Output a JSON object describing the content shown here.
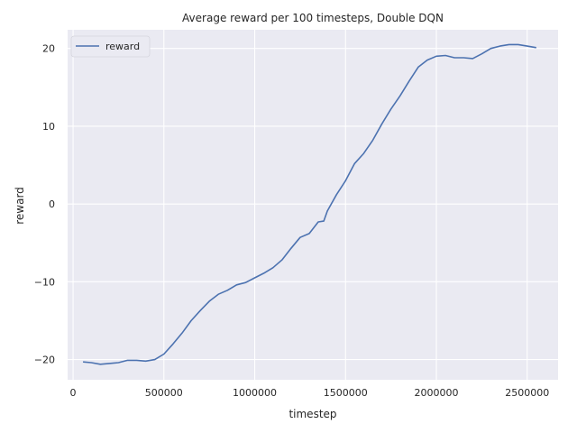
{
  "chart_data": {
    "type": "line",
    "title": "Average reward per 100 timesteps, Double DQN",
    "xlabel": "timestep",
    "ylabel": "reward",
    "xlim": [
      -30000,
      2670000
    ],
    "ylim": [
      -22.6,
      22.4
    ],
    "x_ticks": [
      0,
      500000,
      1000000,
      1500000,
      2000000,
      2500000
    ],
    "x_tick_labels": [
      "0",
      "500000",
      "1000000",
      "1500000",
      "2000000",
      "2500000"
    ],
    "y_ticks": [
      -20,
      -10,
      0,
      10,
      20
    ],
    "y_tick_labels": [
      "−20",
      "−10",
      "0",
      "10",
      "20"
    ],
    "grid": true,
    "legend_position": "top-left",
    "series": [
      {
        "name": "reward",
        "color": "#4c72b0",
        "x": [
          55000,
          100000,
          150000,
          200000,
          250000,
          300000,
          350000,
          400000,
          450000,
          500000,
          550000,
          600000,
          650000,
          700000,
          750000,
          800000,
          850000,
          900000,
          950000,
          1000000,
          1050000,
          1100000,
          1150000,
          1200000,
          1250000,
          1300000,
          1350000,
          1380000,
          1400000,
          1450000,
          1500000,
          1550000,
          1600000,
          1650000,
          1700000,
          1750000,
          1800000,
          1850000,
          1900000,
          1950000,
          2000000,
          2050000,
          2100000,
          2150000,
          2200000,
          2250000,
          2300000,
          2350000,
          2400000,
          2450000,
          2500000,
          2550000
        ],
        "y": [
          -20.3,
          -20.4,
          -20.6,
          -20.5,
          -20.4,
          -20.1,
          -20.1,
          -20.2,
          -20.0,
          -19.3,
          -18.0,
          -16.6,
          -15.0,
          -13.7,
          -12.5,
          -11.6,
          -11.1,
          -10.4,
          -10.1,
          -9.5,
          -8.9,
          -8.2,
          -7.2,
          -5.7,
          -4.3,
          -3.8,
          -2.3,
          -2.2,
          -0.9,
          1.2,
          3.0,
          5.2,
          6.5,
          8.2,
          10.3,
          12.2,
          13.9,
          15.8,
          17.6,
          18.5,
          19.0,
          19.1,
          18.8,
          18.8,
          18.7,
          19.3,
          20.0,
          20.3,
          20.5,
          20.5,
          20.3,
          20.1
        ]
      }
    ]
  }
}
